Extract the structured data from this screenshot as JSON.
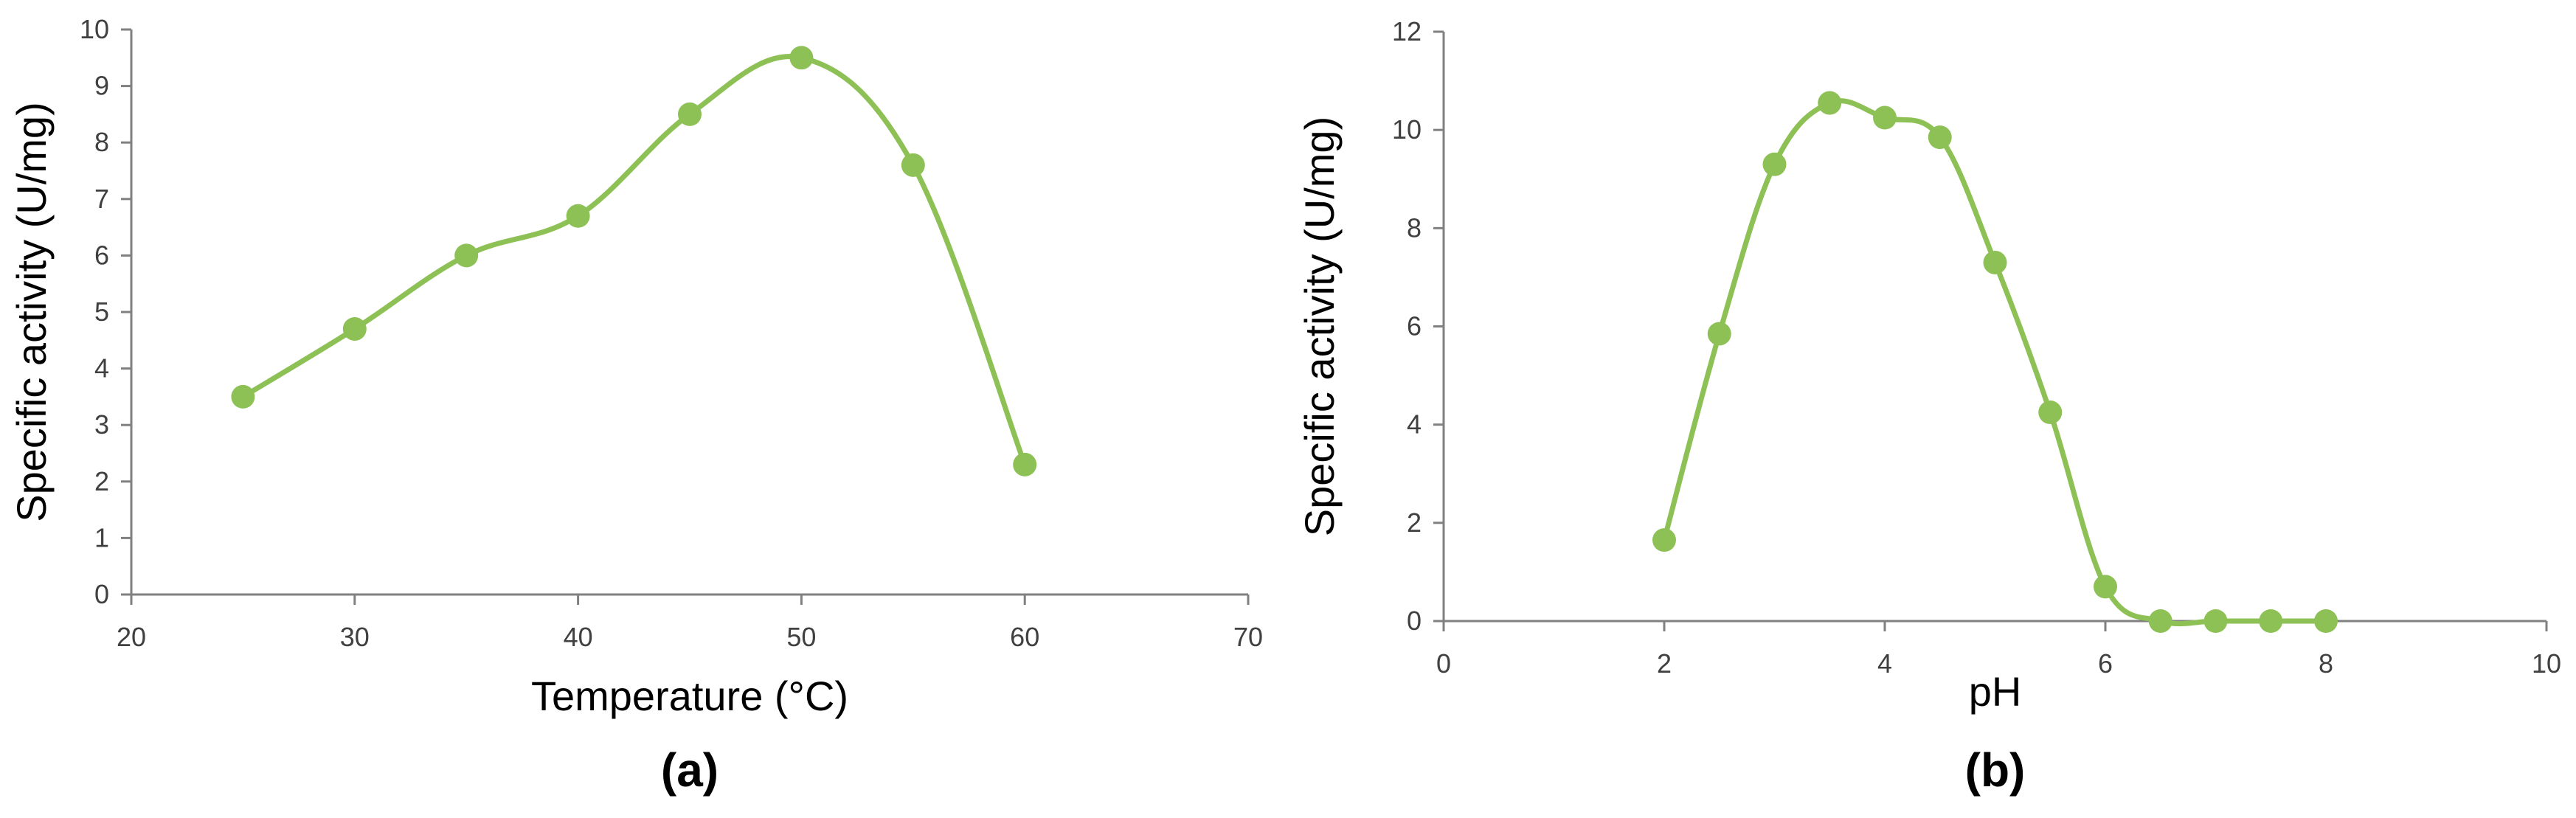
{
  "chart_data": [
    {
      "type": "line",
      "panel_label": "(a)",
      "xlabel": "Temperature (°C)",
      "ylabel": "Specific activity (U/mg)",
      "xlim": [
        20,
        70
      ],
      "ylim": [
        0,
        10
      ],
      "x_ticks": [
        "20",
        "30",
        "40",
        "50",
        "60",
        "70"
      ],
      "y_ticks": [
        "0",
        "1",
        "2",
        "3",
        "4",
        "5",
        "6",
        "7",
        "8",
        "9",
        "10"
      ],
      "series": [
        {
          "x": [
            25,
            30,
            35,
            40,
            45,
            50,
            55,
            60
          ],
          "y": [
            3.5,
            4.7,
            6.0,
            6.7,
            8.5,
            9.5,
            7.6,
            2.3
          ]
        }
      ],
      "smooth": true,
      "markers": "circle",
      "grid": false,
      "legend": "none",
      "colors": {
        "line": "#8DC155",
        "marker": "#8DC155",
        "axis": "#808080"
      }
    },
    {
      "type": "line",
      "panel_label": "(b)",
      "xlabel": "pH",
      "ylabel": "Specific activity (U/mg)",
      "xlim": [
        0,
        10
      ],
      "ylim": [
        0,
        12
      ],
      "x_ticks": [
        "0",
        "2",
        "4",
        "6",
        "8",
        "10"
      ],
      "y_ticks": [
        "0",
        "2",
        "4",
        "6",
        "8",
        "10",
        "12"
      ],
      "series": [
        {
          "x": [
            2,
            2.5,
            3,
            3.5,
            4,
            4.5,
            5,
            5.5,
            6,
            6.5,
            7,
            7.5,
            8
          ],
          "y": [
            1.65,
            5.85,
            9.3,
            10.55,
            10.25,
            9.85,
            7.3,
            4.25,
            0.7,
            0,
            0,
            0,
            0
          ]
        }
      ],
      "smooth": true,
      "markers": "circle",
      "grid": false,
      "legend": "none",
      "colors": {
        "line": "#8DC155",
        "marker": "#8DC155",
        "axis": "#808080"
      }
    }
  ]
}
